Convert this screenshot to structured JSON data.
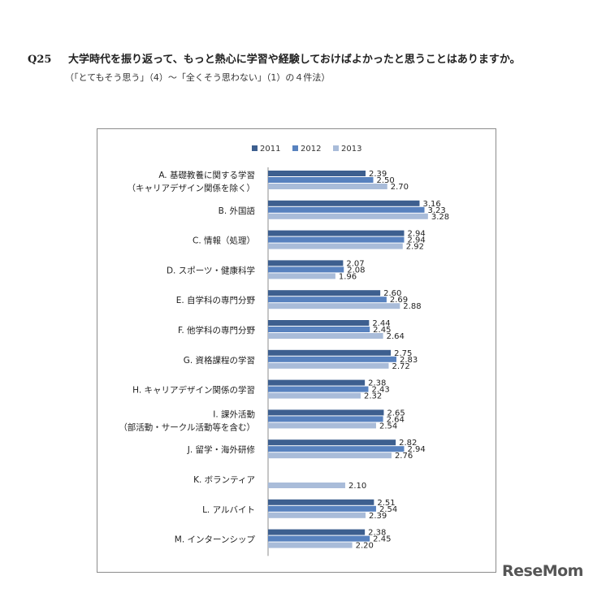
{
  "question": {
    "number": "Q25",
    "text": "大学時代を振り返って、もっと熱心に学習や経験しておけばよかったと思うことはありますか。",
    "note": "（「とてもそう思う」（4）～「全くそう思わない」（1）の４件法）"
  },
  "watermark": "ReseMom",
  "colors": {
    "2011": "#3d5f8f",
    "2012": "#5882bf",
    "2013": "#a9bcd9"
  },
  "chart_data": {
    "type": "bar",
    "orientation": "horizontal",
    "legend_position": "top",
    "xlim": [
      1,
      4
    ],
    "categories": [
      [
        "A. 基礎教養に関する学習",
        "（キャリアデザイン関係を除く）"
      ],
      [
        "B. 外国語"
      ],
      [
        "C. 情報（処理）"
      ],
      [
        "D. スポーツ・健康科学"
      ],
      [
        "E. 自学科の専門分野"
      ],
      [
        "F. 他学科の専門分野"
      ],
      [
        "G. 資格課程の学習"
      ],
      [
        "H. キャリアデザイン関係の学習"
      ],
      [
        "I. 課外活動",
        "（部活動・サークル活動等を含む）"
      ],
      [
        "J. 留学・海外研修"
      ],
      [
        "K. ボランティア"
      ],
      [
        "L. アルバイト"
      ],
      [
        "M. インターンシップ"
      ]
    ],
    "series": [
      {
        "name": "2011",
        "values": [
          2.39,
          3.16,
          2.94,
          2.07,
          2.6,
          2.44,
          2.75,
          2.38,
          2.65,
          2.82,
          null,
          2.51,
          2.38
        ]
      },
      {
        "name": "2012",
        "values": [
          2.5,
          3.23,
          2.94,
          2.08,
          2.69,
          2.45,
          2.83,
          2.43,
          2.64,
          2.94,
          null,
          2.54,
          2.45
        ]
      },
      {
        "name": "2013",
        "values": [
          2.7,
          3.28,
          2.92,
          1.96,
          2.88,
          2.64,
          2.72,
          2.32,
          2.54,
          2.76,
          2.1,
          2.39,
          2.2
        ]
      }
    ]
  }
}
